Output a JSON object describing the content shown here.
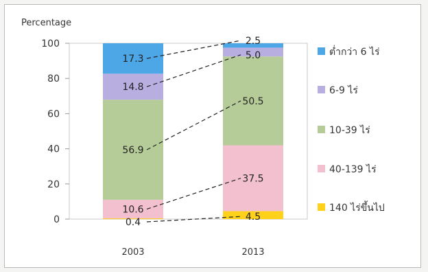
{
  "chart_data": {
    "type": "bar",
    "stacked": true,
    "title": "",
    "ylabel": "Percentage",
    "xlabel": "",
    "ylim": [
      0,
      100
    ],
    "yticks": [
      "0",
      "20",
      "40",
      "60",
      "80",
      "100"
    ],
    "categories": [
      "2003",
      "2013"
    ],
    "series": [
      {
        "name": "140 ไร่ขึ้นไป",
        "values": [
          0.4,
          4.5
        ],
        "labels": [
          "0.4",
          "4.5"
        ],
        "color": "#ffd11a"
      },
      {
        "name": "40-139 ไร่",
        "values": [
          10.6,
          37.5
        ],
        "labels": [
          "10.6",
          "37.5"
        ],
        "color": "#f3c0d0"
      },
      {
        "name": "10-39 ไร่",
        "values": [
          56.9,
          50.5
        ],
        "labels": [
          "56.9",
          "50.5"
        ],
        "color": "#b5cc98"
      },
      {
        "name": "6-9 ไร่",
        "values": [
          14.8,
          5.0
        ],
        "labels": [
          "14.8",
          "5.0"
        ],
        "color": "#b8aee0"
      },
      {
        "name": "ต่ำกว่า 6 ไร่",
        "values": [
          17.3,
          2.5
        ],
        "labels": [
          "17.3",
          "2.5"
        ],
        "color": "#4da6e6"
      }
    ],
    "legend_order": [
      "ต่ำกว่า 6 ไร่",
      "6-9 ไร่",
      "10-39 ไร่",
      "40-139 ไร่",
      "140 ไร่ขึ้นไป"
    ],
    "legend_position": "right",
    "connector_lines": "dashed",
    "grid": false
  }
}
